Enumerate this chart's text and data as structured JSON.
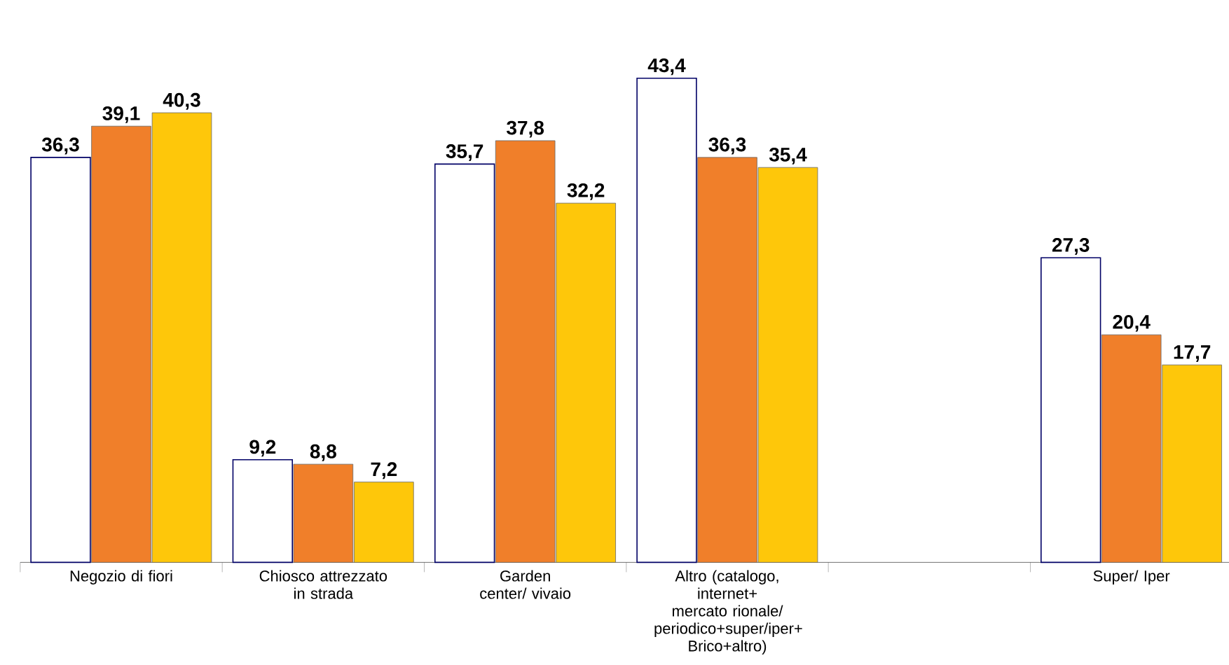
{
  "chart_data": {
    "type": "bar",
    "categories": [
      "Negozio di fiori",
      "Chiosco attrezzato in strada",
      "Garden center/ vivaio",
      "Altro (catalogo, internet+ mercato rionale/ periodico+super/iper+ Brico+altro)",
      null,
      "Super/ Iper"
    ],
    "series": [
      {
        "color": "#ffffff",
        "values": [
          36.3,
          9.2,
          35.7,
          43.4,
          null,
          27.3
        ],
        "value_labels": [
          "36,3",
          "9,2",
          "35,7",
          "43,4",
          null,
          "27,3"
        ]
      },
      {
        "color": "#f07f2a",
        "values": [
          39.1,
          8.8,
          37.8,
          36.3,
          null,
          20.4
        ],
        "value_labels": [
          "39,1",
          "8,8",
          "37,8",
          "36,3",
          null,
          "20,4"
        ]
      },
      {
        "color": "#fec70a",
        "values": [
          40.3,
          7.2,
          32.2,
          35.4,
          null,
          17.7
        ],
        "value_labels": [
          "40,3",
          "7,2",
          "32,2",
          "35,4",
          null,
          "17,7"
        ]
      }
    ]
  }
}
